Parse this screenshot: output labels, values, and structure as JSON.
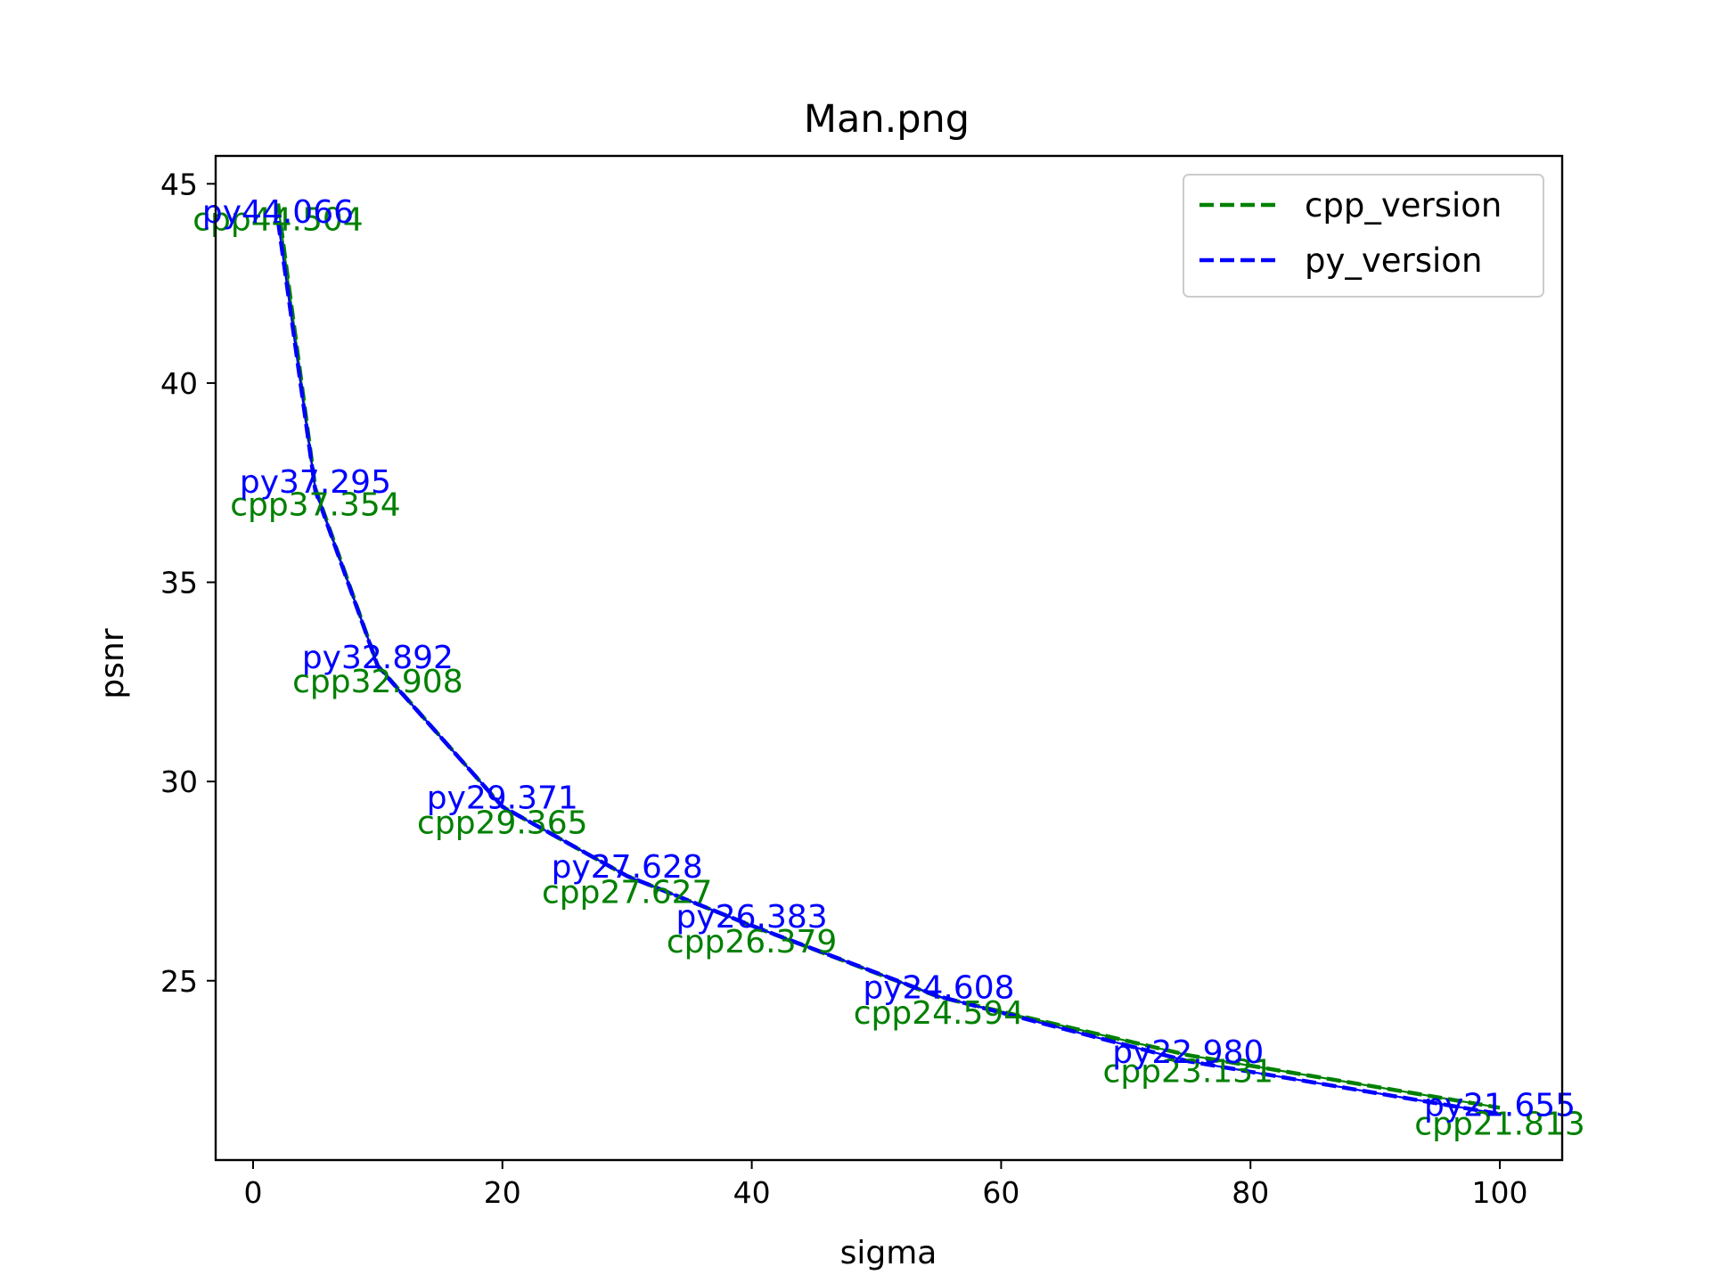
{
  "chart_data": {
    "type": "line",
    "title": "Man.png",
    "xlabel": "sigma",
    "ylabel": "psnr",
    "xlim": [
      -3,
      105
    ],
    "ylim": [
      20.5,
      45.7
    ],
    "x_ticks": [
      0,
      20,
      40,
      60,
      80,
      100
    ],
    "x_tick_labels": [
      "0",
      "20",
      "40",
      "60",
      "80",
      "100"
    ],
    "y_ticks": [
      25,
      30,
      35,
      40,
      45
    ],
    "y_tick_labels": [
      "25",
      "30",
      "35",
      "40",
      "45"
    ],
    "grid": false,
    "legend_position": "top-right",
    "x": [
      2,
      5,
      10,
      20,
      30,
      40,
      55,
      75,
      100
    ],
    "series": [
      {
        "name": "cpp_version",
        "color": "#008000",
        "line_style": "dashed",
        "values": [
          44.504,
          37.354,
          32.908,
          29.365,
          27.627,
          26.379,
          24.594,
          23.131,
          21.813
        ],
        "labels": [
          "cpp44.504",
          "cpp37.354",
          "cpp32.908",
          "cpp29.365",
          "cpp27.627",
          "cpp26.379",
          "cpp24.594",
          "cpp23.131",
          "cpp21.813"
        ]
      },
      {
        "name": "py_version",
        "color": "#0000ff",
        "line_style": "dashed",
        "values": [
          44.066,
          37.295,
          32.892,
          29.371,
          27.628,
          26.383,
          24.608,
          22.98,
          21.655
        ],
        "labels": [
          "py44.066",
          "py37.295",
          "py32.892",
          "py29.371",
          "py27.628",
          "py26.383",
          "py24.608",
          "py22.980",
          "py21.655"
        ]
      }
    ]
  }
}
